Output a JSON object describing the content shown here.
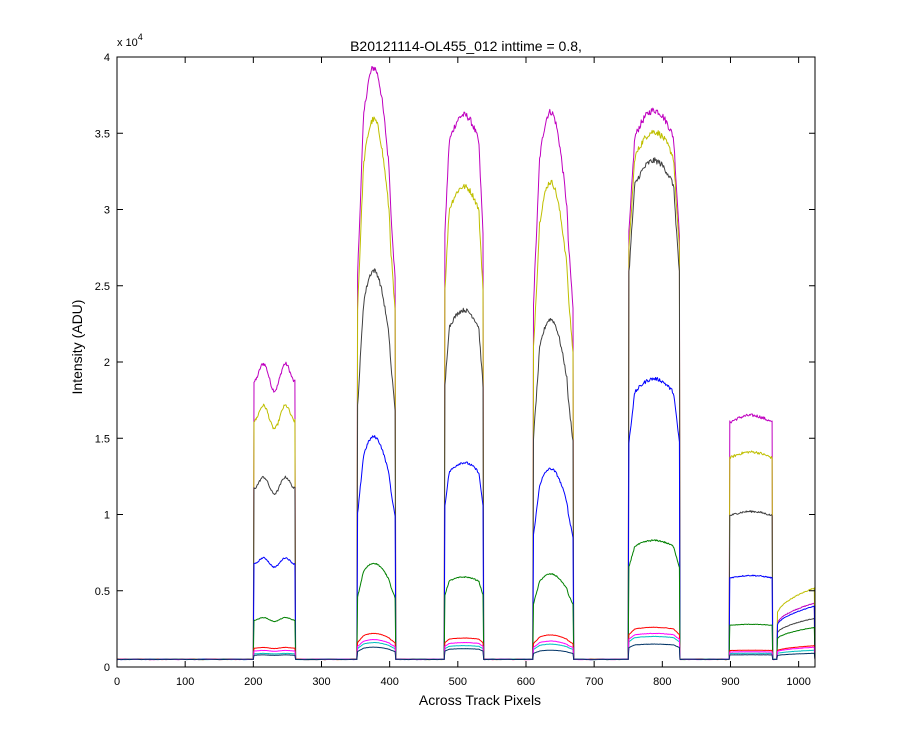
{
  "chart_data": {
    "type": "line",
    "title": "B20121114-OL455_012 inttime = 0.8,",
    "xlabel": "Across Track Pixels",
    "ylabel": "Intensity (ADU)",
    "xlim": [
      0,
      1024
    ],
    "ylim": [
      0,
      40000
    ],
    "x_ticks": [
      0,
      100,
      200,
      300,
      400,
      500,
      600,
      700,
      800,
      900,
      1000
    ],
    "y_ticks": [
      0,
      5000,
      10000,
      15000,
      20000,
      25000,
      30000,
      35000,
      40000
    ],
    "y_tick_labels": [
      "0",
      "0.5",
      "1",
      "1.5",
      "2",
      "2.5",
      "3",
      "3.5",
      "4"
    ],
    "y_exponent_label": "x 10",
    "y_exponent_power": "4",
    "grid": false,
    "baseline": 500,
    "regions": [
      [
        200,
        262
      ],
      [
        352,
        409
      ],
      [
        480,
        538
      ],
      [
        610,
        670
      ],
      [
        750,
        826
      ],
      [
        898,
        962
      ],
      [
        968,
        1024
      ]
    ],
    "series": [
      {
        "color": "#bf00bf",
        "values": [
          20300,
          39300,
          36200,
          36400,
          36500,
          16500,
          4200
        ]
      },
      {
        "color": "#bfbf00",
        "values": [
          17500,
          35900,
          31500,
          31800,
          35100,
          14100,
          5200
        ]
      },
      {
        "color": "#404040",
        "values": [
          12700,
          26000,
          23400,
          22800,
          33200,
          10200,
          3200
        ]
      },
      {
        "color": "#0000ff",
        "values": [
          7300,
          15100,
          13400,
          13000,
          18900,
          6000,
          4000
        ]
      },
      {
        "color": "#008000",
        "values": [
          3300,
          6800,
          5900,
          6100,
          8300,
          2800,
          2600
        ]
      },
      {
        "color": "#ff0000",
        "values": [
          1300,
          2200,
          1900,
          2100,
          2600,
          1100,
          1400
        ]
      },
      {
        "color": "#00bfbf",
        "values": [
          900,
          1600,
          1400,
          1500,
          2000,
          900,
          1100
        ]
      },
      {
        "color": "#ff00ff",
        "values": [
          1100,
          1800,
          1600,
          1700,
          2200,
          1000,
          1300
        ]
      },
      {
        "color": "#003366",
        "values": [
          800,
          1300,
          1200,
          1100,
          1500,
          800,
          900
        ]
      }
    ]
  }
}
